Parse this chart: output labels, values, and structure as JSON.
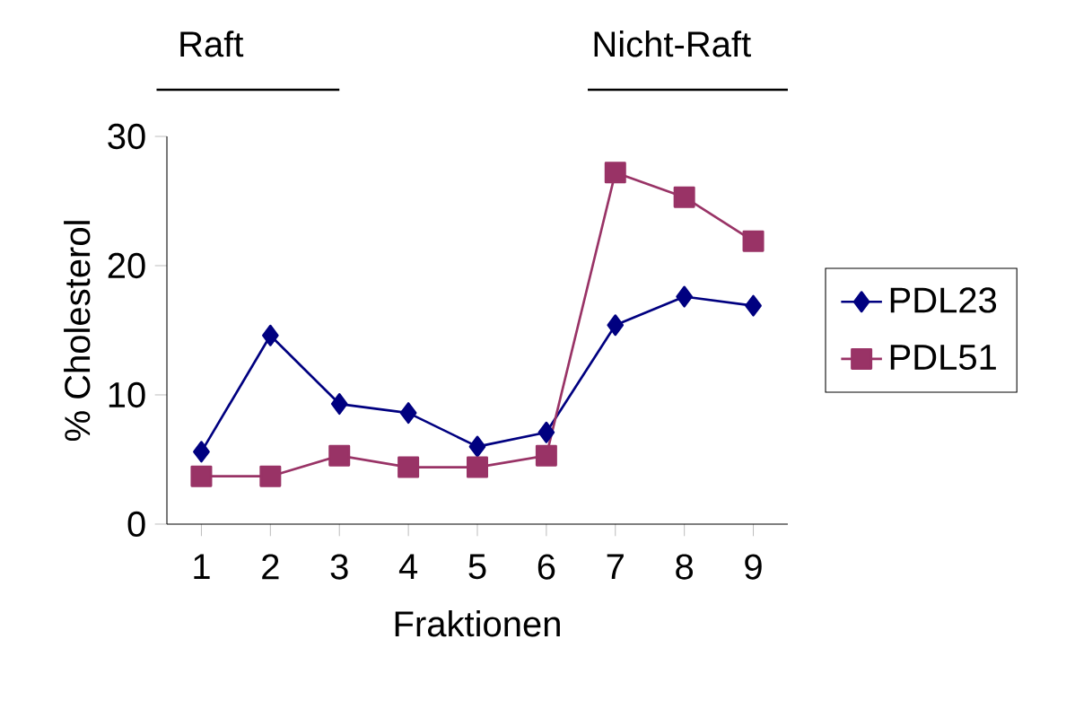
{
  "chart_data": {
    "type": "line",
    "xlabel": "Fraktionen",
    "ylabel": "% Cholesterol",
    "categories": [
      "1",
      "2",
      "3",
      "4",
      "5",
      "6",
      "7",
      "8",
      "9"
    ],
    "series": [
      {
        "name": "PDL23",
        "color": "#000080",
        "marker": "diamond",
        "values": [
          5.6,
          14.6,
          9.3,
          8.6,
          6.0,
          7.1,
          15.4,
          17.6,
          16.9
        ]
      },
      {
        "name": "PDL51",
        "color": "#993366",
        "marker": "square",
        "values": [
          3.7,
          3.7,
          5.3,
          4.4,
          4.4,
          5.3,
          27.2,
          25.3,
          21.9
        ]
      }
    ],
    "ylim": [
      0,
      30
    ],
    "yticks": [
      0,
      10,
      20,
      30
    ],
    "grid": false,
    "legend": "right",
    "annotations": [
      "Raft",
      "Nicht-Raft"
    ]
  }
}
